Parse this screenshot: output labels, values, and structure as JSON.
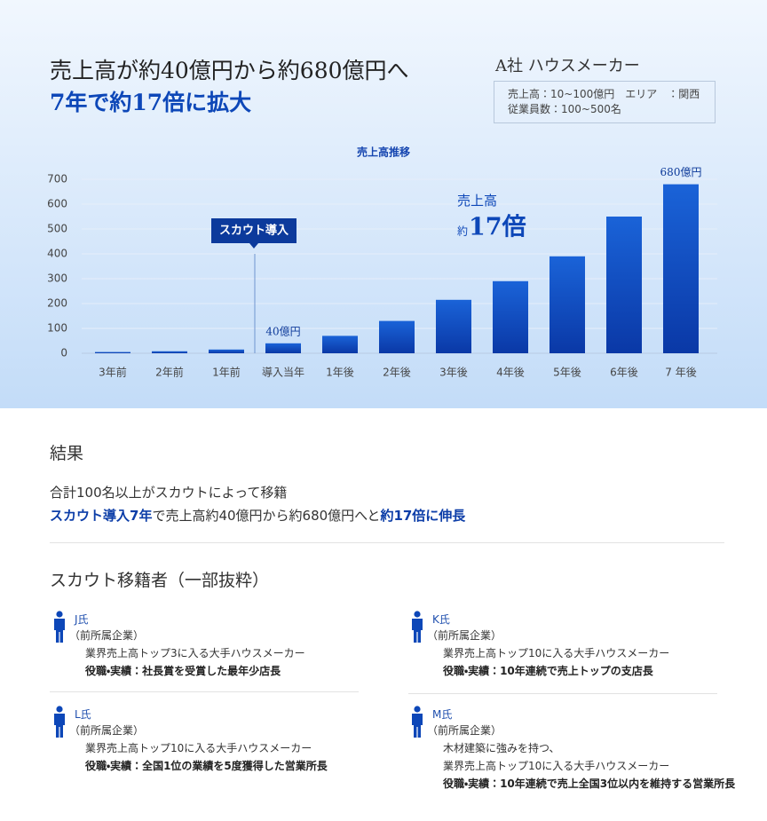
{
  "header": {
    "title_lines": [
      "売上高が約40億円から約680億円へ",
      "7年で約17倍に拡大"
    ],
    "company": "A社 ハウスメーカー",
    "info_lines": [
      "売上高：10~100億円　エリア　：関西",
      "従業員数：100~500名"
    ]
  },
  "chart_data": {
    "type": "bar",
    "title": "売上高推移",
    "categories": [
      "3年前",
      "2年前",
      "1年前",
      "導入当年",
      "1年後",
      "2年後",
      "3年後",
      "4年後",
      "5年後",
      "6年後",
      "7 年後"
    ],
    "values": [
      5,
      8,
      15,
      40,
      70,
      130,
      215,
      290,
      390,
      550,
      680
    ],
    "value_labels": [
      null,
      null,
      null,
      "40億円",
      null,
      null,
      null,
      null,
      null,
      null,
      "680億円"
    ],
    "color": "#0d47c2",
    "ylim": [
      0,
      700
    ],
    "yticks": [
      0,
      100,
      200,
      300,
      400,
      500,
      600,
      700
    ],
    "grid": true,
    "annotations": {
      "callout": "スカウト導入",
      "growth_label": "売上高",
      "growth_prefix": "約",
      "growth_value": "17倍"
    }
  },
  "results": {
    "heading": "結果",
    "line1": "合計100名以上がスカウトによって移籍",
    "line2": [
      "スカウト導入7年",
      "で売上高約40億円から約680億円へと",
      "約17倍に伸長"
    ]
  },
  "transfers": {
    "heading": "スカウト移籍者（一部抜粋）",
    "people": [
      {
        "name": "J氏",
        "previous": "（前所属企業）",
        "lines": [
          "業界売上高トップ3に入る大手ハウスメーカー"
        ],
        "role": "役職・実績：社長賞を受賞した最年少店長"
      },
      {
        "name": "K氏",
        "previous": "（前所属企業）",
        "lines": [
          "業界売上高トップ10に入る大手ハウスメーカー"
        ],
        "role": "役職・実績：10年連続で売上トップの支店長"
      },
      {
        "name": "L氏",
        "previous": "（前所属企業）",
        "lines": [
          "業界売上高トップ10に入る大手ハウスメーカー"
        ],
        "role": "役職・実績：全国1位の業績を5度獲得した営業所長"
      },
      {
        "name": "M氏",
        "previous": "（前所属企業）",
        "lines": [
          "木材建築に強みを持つ、",
          "業界売上高トップ10に入る大手ハウスメーカー"
        ],
        "role": "役職・実績：10年連続で売上全国3位以内を維持する営業所長"
      }
    ]
  }
}
